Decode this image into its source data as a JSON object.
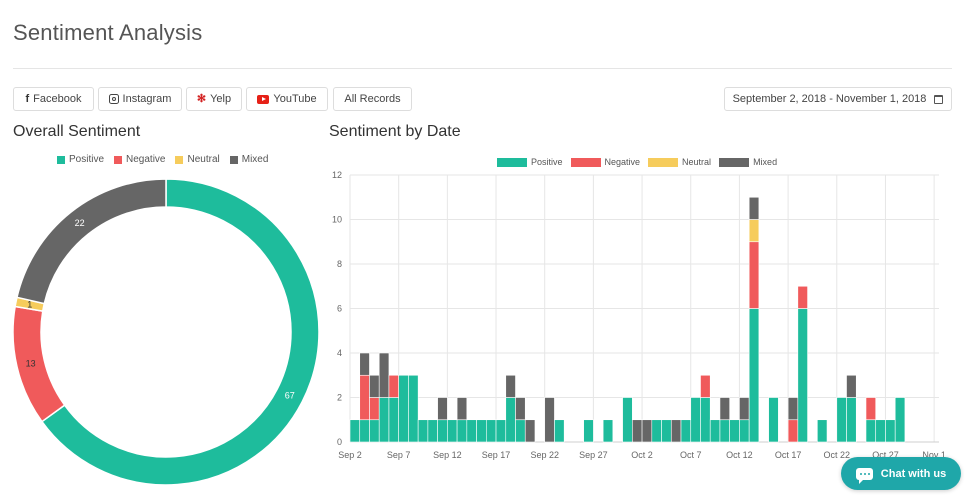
{
  "page": {
    "title": "Sentiment Analysis"
  },
  "filters": {
    "facebook": "Facebook",
    "instagram": "Instagram",
    "yelp": "Yelp",
    "youtube": "YouTube",
    "all_records": "All Records",
    "date_range": "September 2, 2018 - November 1, 2018"
  },
  "chat": {
    "label": "Chat with us"
  },
  "colors": {
    "positive": "#1ebc9c",
    "negative": "#f05a5b",
    "neutral": "#f6cc5c",
    "mixed": "#666666"
  },
  "chart_data": [
    {
      "type": "pie",
      "title": "Overall Sentiment",
      "legend_position": "top",
      "labels": [
        "Positive",
        "Negative",
        "Neutral",
        "Mixed"
      ],
      "values": [
        67,
        13,
        1,
        22
      ]
    },
    {
      "type": "bar",
      "stacked": true,
      "title": "Sentiment by Date",
      "legend_position": "top",
      "ylim": [
        0,
        12
      ],
      "yticks": [
        0,
        2,
        4,
        6,
        8,
        10,
        12
      ],
      "grid": true,
      "tick_labels": [
        "Sep 2",
        "Sep 7",
        "Sep 12",
        "Sep 17",
        "Sep 22",
        "Sep 27",
        "Oct 2",
        "Oct 7",
        "Oct 12",
        "Oct 17",
        "Oct 22",
        "Oct 27",
        "Nov 1"
      ],
      "categories": [
        "Sep 2",
        "Sep 3",
        "Sep 4",
        "Sep 5",
        "Sep 6",
        "Sep 7",
        "Sep 8",
        "Sep 9",
        "Sep 10",
        "Sep 11",
        "Sep 12",
        "Sep 13",
        "Sep 14",
        "Sep 15",
        "Sep 16",
        "Sep 17",
        "Sep 18",
        "Sep 19",
        "Sep 20",
        "Sep 21",
        "Sep 22",
        "Sep 23",
        "Sep 24",
        "Sep 25",
        "Sep 26",
        "Sep 27",
        "Sep 28",
        "Sep 29",
        "Sep 30",
        "Oct 1",
        "Oct 2",
        "Oct 3",
        "Oct 4",
        "Oct 5",
        "Oct 6",
        "Oct 7",
        "Oct 8",
        "Oct 9",
        "Oct 10",
        "Oct 11",
        "Oct 12",
        "Oct 13",
        "Oct 14",
        "Oct 15",
        "Oct 16",
        "Oct 17",
        "Oct 18",
        "Oct 19",
        "Oct 20",
        "Oct 21",
        "Oct 22",
        "Oct 23",
        "Oct 24",
        "Oct 25",
        "Oct 26",
        "Oct 27",
        "Oct 28",
        "Oct 29",
        "Oct 30",
        "Oct 31"
      ],
      "series": [
        {
          "name": "Positive",
          "values": [
            1,
            1,
            1,
            2,
            2,
            3,
            3,
            1,
            1,
            1,
            1,
            1,
            1,
            1,
            1,
            1,
            2,
            1,
            0,
            0,
            0,
            1,
            0,
            0,
            1,
            0,
            1,
            0,
            2,
            0,
            0,
            1,
            1,
            0,
            1,
            2,
            2,
            1,
            1,
            1,
            1,
            6,
            0,
            2,
            0,
            0,
            6,
            0,
            1,
            0,
            2,
            2,
            0,
            1,
            1,
            1,
            2,
            0,
            0,
            0
          ]
        },
        {
          "name": "Negative",
          "values": [
            0,
            2,
            1,
            0,
            1,
            0,
            0,
            0,
            0,
            0,
            0,
            0,
            0,
            0,
            0,
            0,
            0,
            0,
            0,
            0,
            0,
            0,
            0,
            0,
            0,
            0,
            0,
            0,
            0,
            0,
            0,
            0,
            0,
            0,
            0,
            0,
            1,
            0,
            0,
            0,
            0,
            3,
            0,
            0,
            0,
            1,
            1,
            0,
            0,
            0,
            0,
            0,
            0,
            1,
            0,
            0,
            0,
            0,
            0,
            0
          ]
        },
        {
          "name": "Neutral",
          "values": [
            0,
            0,
            0,
            0,
            0,
            0,
            0,
            0,
            0,
            0,
            0,
            0,
            0,
            0,
            0,
            0,
            0,
            0,
            0,
            0,
            0,
            0,
            0,
            0,
            0,
            0,
            0,
            0,
            0,
            0,
            0,
            0,
            0,
            0,
            0,
            0,
            0,
            0,
            0,
            0,
            0,
            1,
            0,
            0,
            0,
            0,
            0,
            0,
            0,
            0,
            0,
            0,
            0,
            0,
            0,
            0,
            0,
            0,
            0,
            0
          ]
        },
        {
          "name": "Mixed",
          "values": [
            0,
            1,
            1,
            2,
            0,
            0,
            0,
            0,
            0,
            1,
            0,
            1,
            0,
            0,
            0,
            0,
            1,
            1,
            1,
            0,
            2,
            0,
            0,
            0,
            0,
            0,
            0,
            0,
            0,
            1,
            1,
            0,
            0,
            1,
            0,
            0,
            0,
            0,
            1,
            0,
            1,
            1,
            0,
            0,
            0,
            1,
            0,
            0,
            0,
            0,
            0,
            1,
            0,
            0,
            0,
            0,
            0,
            0,
            0,
            0
          ]
        }
      ]
    }
  ]
}
